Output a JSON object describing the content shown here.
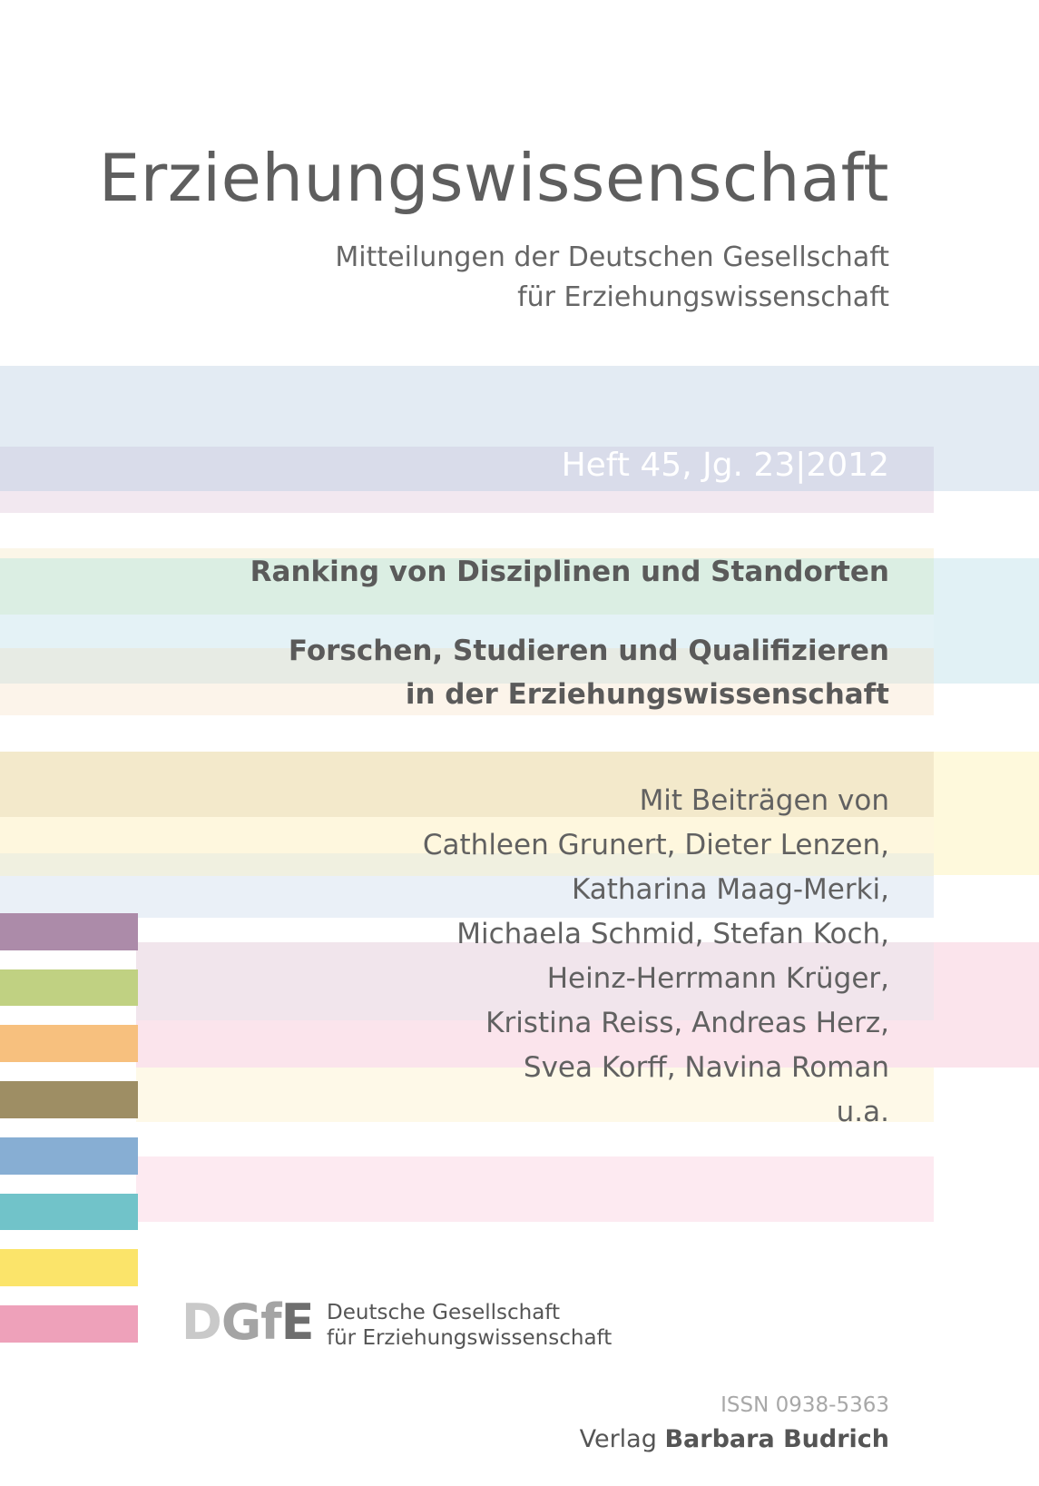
{
  "header": {
    "title": "Erziehungswissenschaft",
    "subtitle_lines": [
      "Mitteilungen der Deutschen Gesellschaft",
      "für Erziehungswissenschaft"
    ]
  },
  "issue": {
    "label": "Heft 45, Jg. 23|2012"
  },
  "topics": {
    "topic1": "Ranking von Disziplinen und Standorten",
    "topic2_lines": [
      "Forschen, Studieren und Qualifizieren",
      "in der Erziehungswissenschaft"
    ]
  },
  "contributors": {
    "lines": [
      "Mit Beiträgen von",
      "Cathleen Grunert, Dieter Lenzen,",
      "Katharina Maag-Merki,",
      "Michaela Schmid, Stefan Koch,",
      "Heinz-Herrmann Krüger,",
      "Kristina Reiss, Andreas Herz,",
      "Svea Korff, Navina Roman",
      "u.a."
    ]
  },
  "logo": {
    "letters": [
      "D",
      "G",
      "f",
      "E"
    ],
    "text_lines": [
      "Deutsche Gesellschaft",
      "für Erziehungswissenschaft"
    ]
  },
  "footer": {
    "issn": "ISSN 0938-5363",
    "publisher_prefix": "Verlag",
    "publisher_name": "Barbara Budrich"
  },
  "colors": {
    "swatches": [
      "#ac8ba9",
      "#c0d182",
      "#f7c07e",
      "#9e8e64",
      "#87aed3",
      "#71c3c9",
      "#fbe46a",
      "#eea1ba"
    ]
  }
}
